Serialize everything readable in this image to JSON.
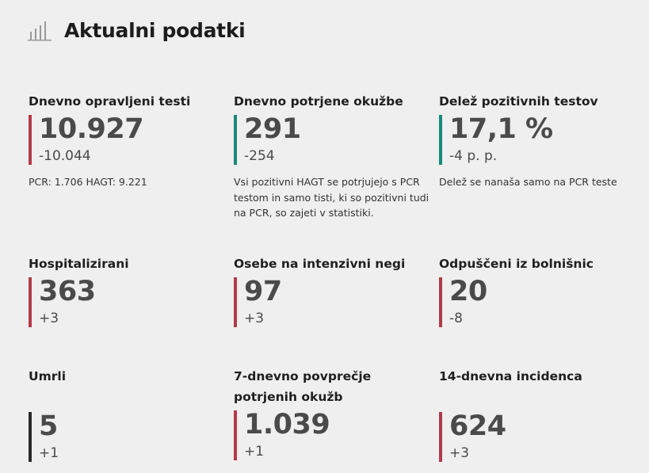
{
  "title": "Aktualni podatki",
  "title_icon": "bar-chart-icon",
  "colors": {
    "red": "#b33a4a",
    "teal": "#16897a",
    "dark": "#2b2b2b"
  },
  "cards": [
    {
      "label": "Dnevno opravljeni testi",
      "value": "10.927",
      "delta": "-10.044",
      "note": "PCR: 1.706 HAGT: 9.221",
      "bar": "red"
    },
    {
      "label": "Dnevno potrjene okužbe",
      "value": "291",
      "delta": "-254",
      "note": "Vsi pozitivni HAGT se potrjujejo s PCR testom in samo tisti, ki so pozitivni tudi na PCR, so zajeti v statistiki.",
      "bar": "teal"
    },
    {
      "label": "Delež pozitivnih testov",
      "value": "17,1 %",
      "delta": "-4 p. p.",
      "note": "Delež se nanaša samo na PCR teste",
      "bar": "teal"
    },
    {
      "label": "Hospitalizirani",
      "value": "363",
      "delta": "+3",
      "bar": "red"
    },
    {
      "label": "Osebe na intenzivni negi",
      "value": "97",
      "delta": "+3",
      "bar": "red"
    },
    {
      "label": "Odpuščeni iz bolnišnic",
      "value": "20",
      "delta": "-8",
      "bar": "red"
    },
    {
      "label": "Umrli",
      "value": "5",
      "delta": "+1",
      "bar": "dark"
    },
    {
      "label": "7-dnevno povprečje potrjenih okužb",
      "value": "1.039",
      "delta": "+1",
      "bar": "red"
    },
    {
      "label": "14-dnevna incidenca",
      "value": "624",
      "delta": "+3",
      "bar": "red"
    }
  ]
}
